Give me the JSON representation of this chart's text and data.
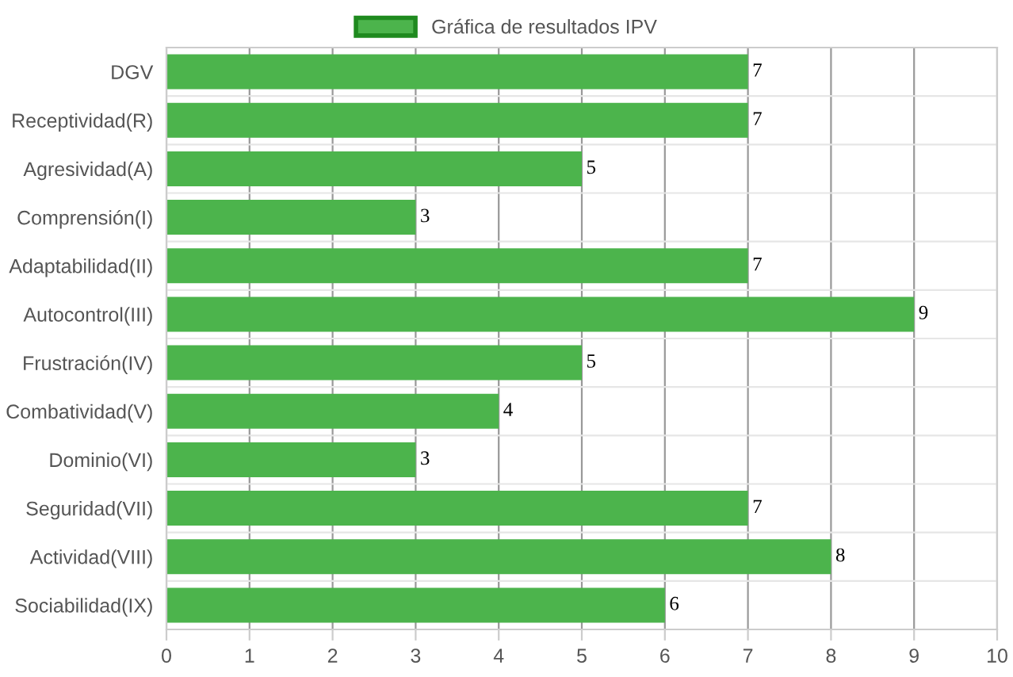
{
  "chart_data": {
    "type": "bar",
    "orientation": "horizontal",
    "categories": [
      "DGV",
      "Receptividad(R)",
      "Agresividad(A)",
      "Comprensión(I)",
      "Adaptabilidad(II)",
      "Autocontrol(III)",
      "Frustración(IV)",
      "Combatividad(V)",
      "Dominio(VI)",
      "Seguridad(VII)",
      "Actividad(VIII)",
      "Sociabilidad(IX)"
    ],
    "series": [
      {
        "name": "Gráfica de resultados IPV",
        "color": "#4cb44c",
        "values": [
          7,
          7,
          5,
          3,
          7,
          9,
          5,
          4,
          3,
          7,
          8,
          6
        ]
      }
    ],
    "xlim": [
      0,
      10
    ],
    "xticks": [
      0,
      1,
      2,
      3,
      4,
      5,
      6,
      7,
      8,
      9,
      10
    ],
    "grid": true,
    "legend": "top",
    "data_labels": true
  }
}
